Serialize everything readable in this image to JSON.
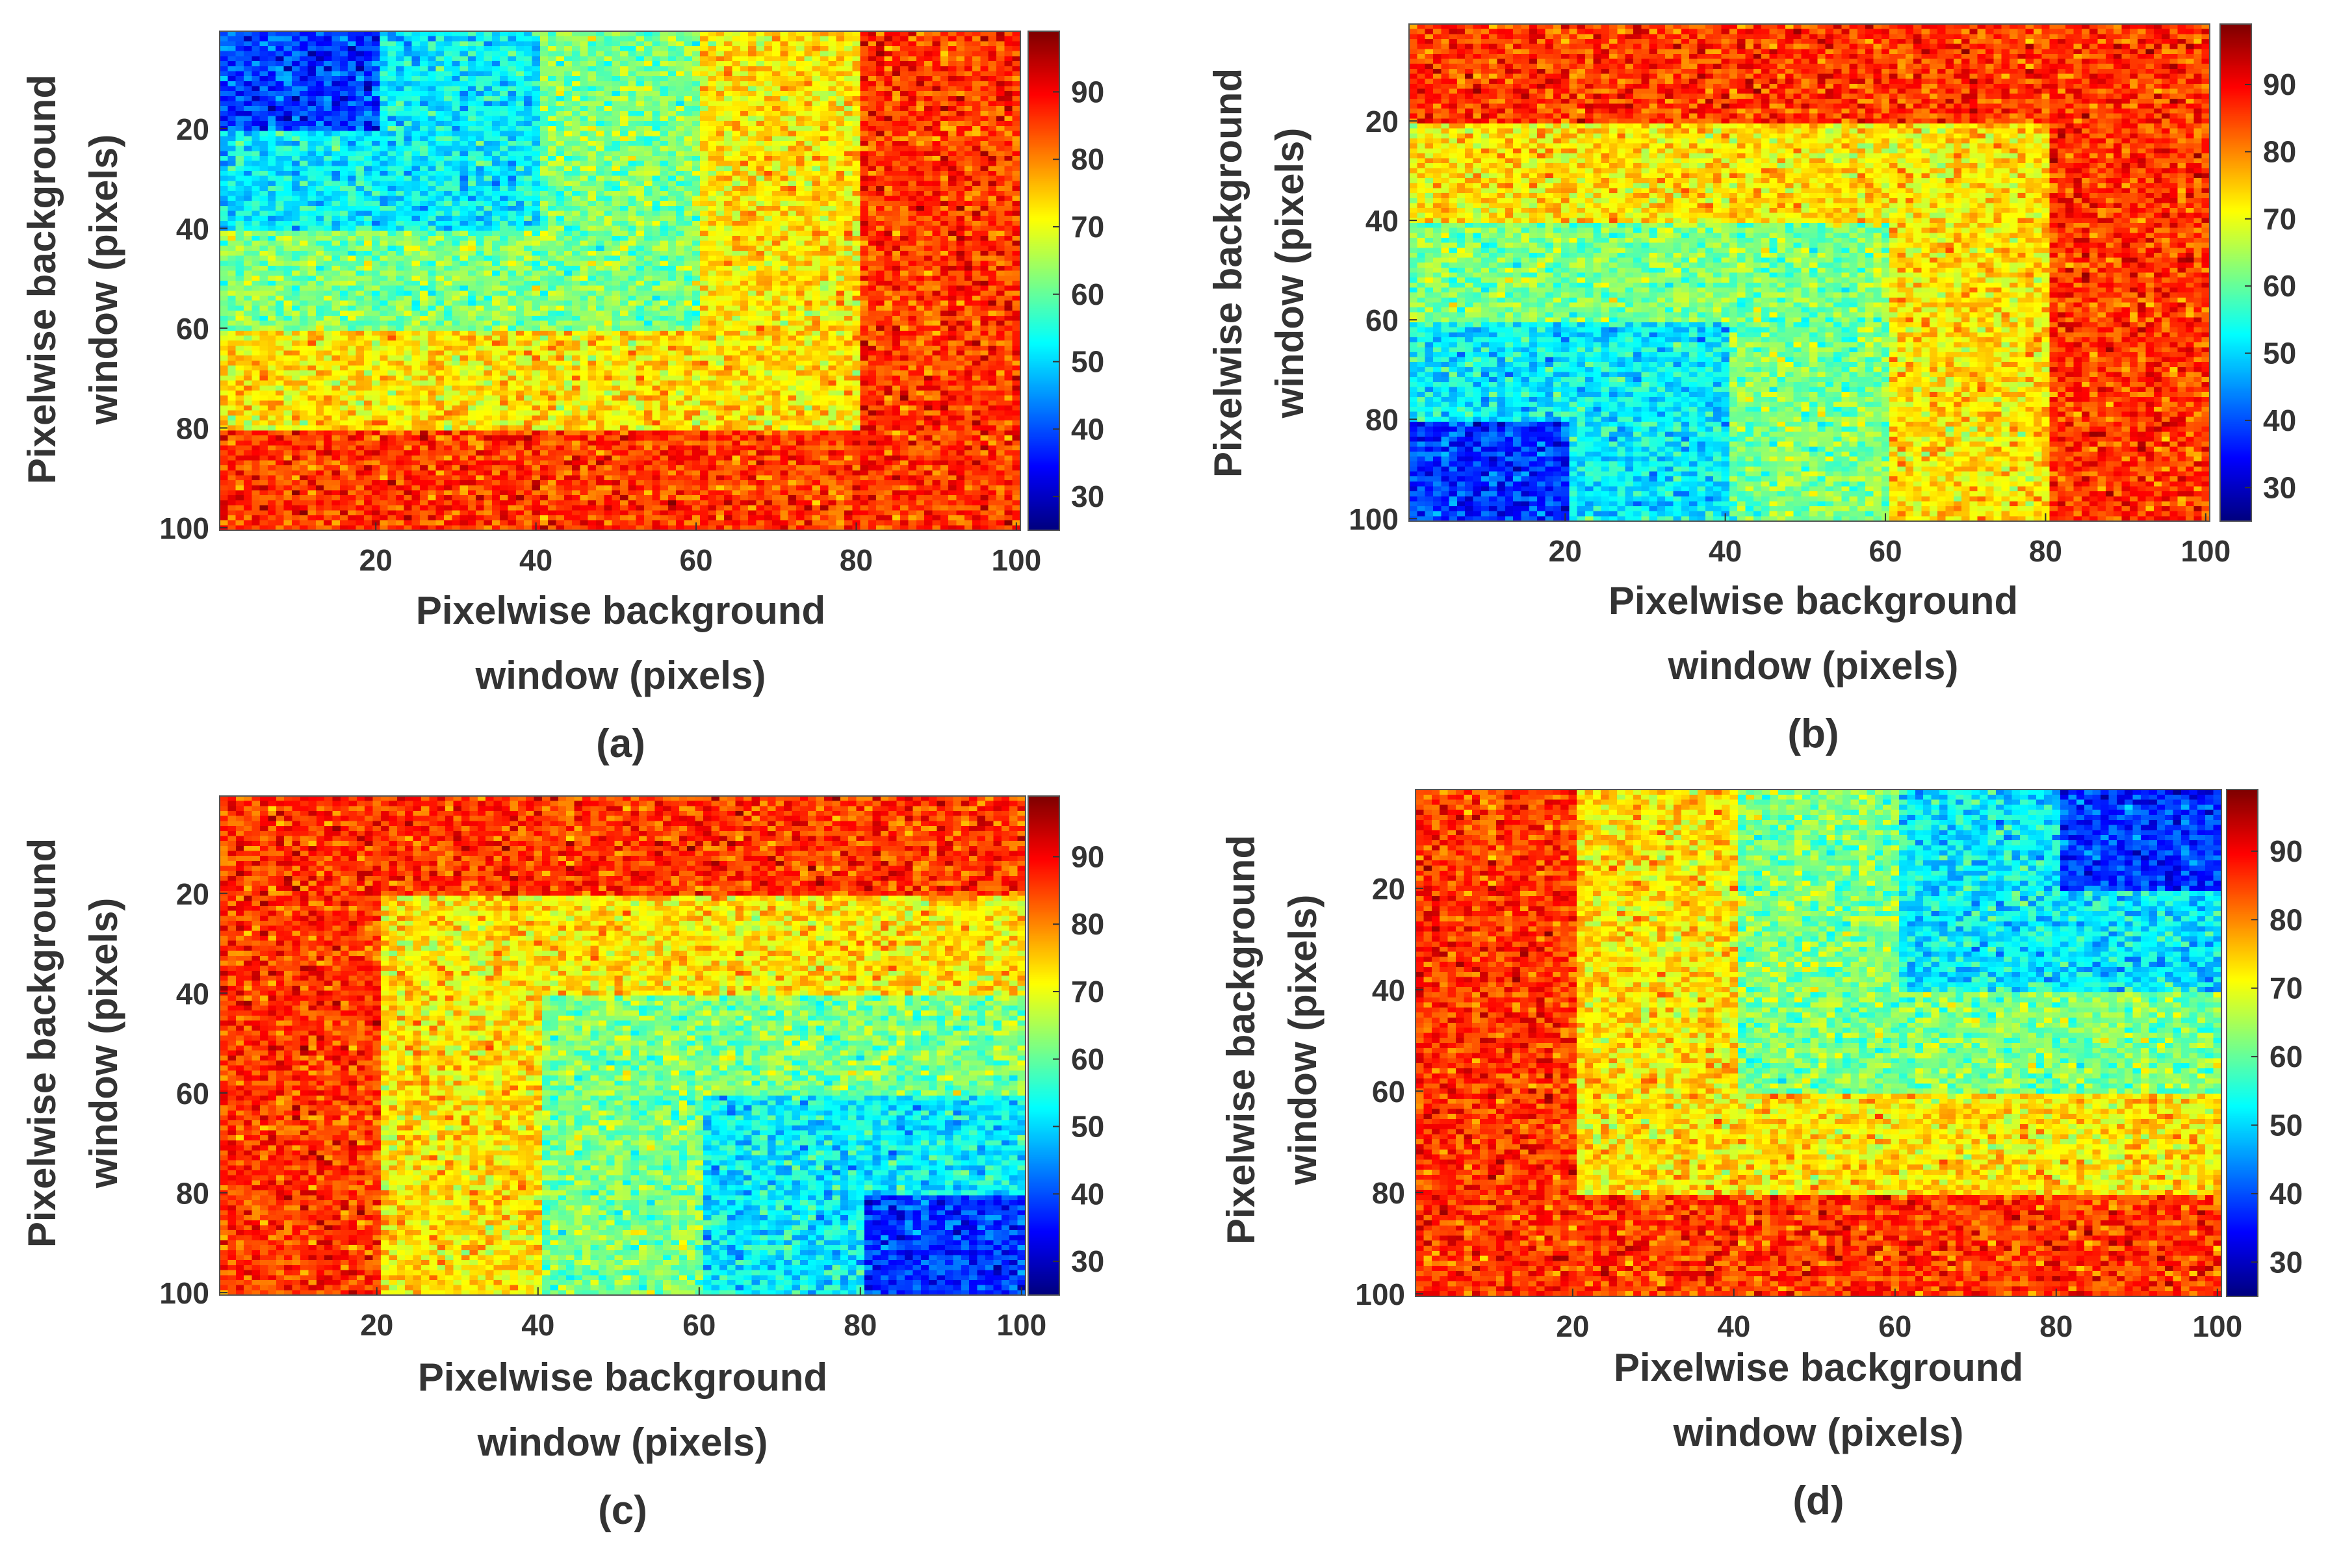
{
  "chart_data": [
    {
      "panel": "a",
      "type": "heatmap",
      "caption": "(a)",
      "xlabel_line1": "Pixelwise background",
      "xlabel_line2": "window (pixels)",
      "ylabel_line1": "Pixelwise background",
      "ylabel_line2": "window (pixels)",
      "xlim": [
        1,
        100
      ],
      "ylim": [
        1,
        100
      ],
      "xticks": [
        "20",
        "40",
        "60",
        "80",
        "100"
      ],
      "yticks": [
        "20",
        "40",
        "60",
        "80",
        "100"
      ],
      "colorbar": {
        "min": 25,
        "max": 99,
        "ticks": [
          "30",
          "40",
          "50",
          "60",
          "70",
          "80",
          "90"
        ],
        "colormap": "jet"
      },
      "pattern": "nested L-shaped bands from top-left corner",
      "bands": [
        {
          "x_range": [
            0,
            20
          ],
          "y_range": [
            0,
            20
          ],
          "mean": 38
        },
        {
          "x_range": [
            0,
            40
          ],
          "y_range": [
            0,
            40
          ],
          "mean": 52
        },
        {
          "x_range": [
            0,
            60
          ],
          "y_range": [
            0,
            60
          ],
          "mean": 62
        },
        {
          "x_range": [
            0,
            80
          ],
          "y_range": [
            0,
            80
          ],
          "mean": 73
        },
        {
          "x_range": [
            0,
            100
          ],
          "y_range": [
            0,
            100
          ],
          "mean": 86
        }
      ]
    },
    {
      "panel": "b",
      "type": "heatmap",
      "caption": "(b)",
      "xlabel_line1": "Pixelwise background",
      "xlabel_line2": "window (pixels)",
      "ylabel_line1": "Pixelwise background",
      "ylabel_line2": "window  (pixels)",
      "xlim": [
        1,
        100
      ],
      "ylim": [
        1,
        100
      ],
      "xticks": [
        "20",
        "40",
        "60",
        "80",
        "100"
      ],
      "yticks": [
        "20",
        "40",
        "60",
        "80",
        "100"
      ],
      "colorbar": {
        "min": 25,
        "max": 99,
        "ticks": [
          "30",
          "40",
          "50",
          "60",
          "70",
          "80",
          "90"
        ],
        "colormap": "jet"
      },
      "pattern": "nested L-shaped bands from bottom-left corner",
      "bands": [
        {
          "x_range": [
            0,
            20
          ],
          "y_range": [
            80,
            100
          ],
          "mean": 38
        },
        {
          "x_range": [
            0,
            40
          ],
          "y_range": [
            60,
            100
          ],
          "mean": 52
        },
        {
          "x_range": [
            0,
            60
          ],
          "y_range": [
            40,
            100
          ],
          "mean": 62
        },
        {
          "x_range": [
            0,
            80
          ],
          "y_range": [
            20,
            100
          ],
          "mean": 73
        },
        {
          "x_range": [
            0,
            100
          ],
          "y_range": [
            0,
            100
          ],
          "mean": 86
        }
      ]
    },
    {
      "panel": "c",
      "type": "heatmap",
      "caption": "(c)",
      "xlabel_line1": "Pixelwise background",
      "xlabel_line2": "window (pixels)",
      "ylabel_line1": "Pixelwise background",
      "ylabel_line2": "window (pixels)",
      "xlim": [
        1,
        100
      ],
      "ylim": [
        1,
        100
      ],
      "xticks": [
        "20",
        "40",
        "60",
        "80",
        "100"
      ],
      "yticks": [
        "20",
        "40",
        "60",
        "80",
        "100"
      ],
      "colorbar": {
        "min": 25,
        "max": 99,
        "ticks": [
          "30",
          "40",
          "50",
          "60",
          "70",
          "80",
          "90"
        ],
        "colormap": "jet"
      },
      "pattern": "nested L-shaped bands from bottom-right corner",
      "bands": [
        {
          "x_range": [
            80,
            100
          ],
          "y_range": [
            80,
            100
          ],
          "mean": 38
        },
        {
          "x_range": [
            60,
            100
          ],
          "y_range": [
            60,
            100
          ],
          "mean": 52
        },
        {
          "x_range": [
            40,
            100
          ],
          "y_range": [
            40,
            100
          ],
          "mean": 62
        },
        {
          "x_range": [
            20,
            100
          ],
          "y_range": [
            20,
            100
          ],
          "mean": 73
        },
        {
          "x_range": [
            0,
            100
          ],
          "y_range": [
            0,
            100
          ],
          "mean": 86
        }
      ]
    },
    {
      "panel": "d",
      "type": "heatmap",
      "caption": "(d)",
      "xlabel_line1": "Pixelwise background",
      "xlabel_line2": "window (pixels)",
      "ylabel_line1": "Pixelwise background",
      "ylabel_line2": "window (pixels)",
      "xlim": [
        1,
        100
      ],
      "ylim": [
        1,
        100
      ],
      "xticks": [
        "20",
        "40",
        "60",
        "80",
        "100"
      ],
      "yticks": [
        "20",
        "40",
        "60",
        "80",
        "100"
      ],
      "colorbar": {
        "min": 25,
        "max": 99,
        "ticks": [
          "30",
          "40",
          "50",
          "60",
          "70",
          "80",
          "90"
        ],
        "colormap": "jet"
      },
      "pattern": "nested L-shaped bands from top-right corner",
      "bands": [
        {
          "x_range": [
            80,
            100
          ],
          "y_range": [
            0,
            20
          ],
          "mean": 38
        },
        {
          "x_range": [
            60,
            100
          ],
          "y_range": [
            0,
            40
          ],
          "mean": 52
        },
        {
          "x_range": [
            40,
            100
          ],
          "y_range": [
            0,
            60
          ],
          "mean": 62
        },
        {
          "x_range": [
            20,
            100
          ],
          "y_range": [
            0,
            80
          ],
          "mean": 73
        },
        {
          "x_range": [
            0,
            100
          ],
          "y_range": [
            0,
            100
          ],
          "mean": 86
        }
      ]
    }
  ]
}
